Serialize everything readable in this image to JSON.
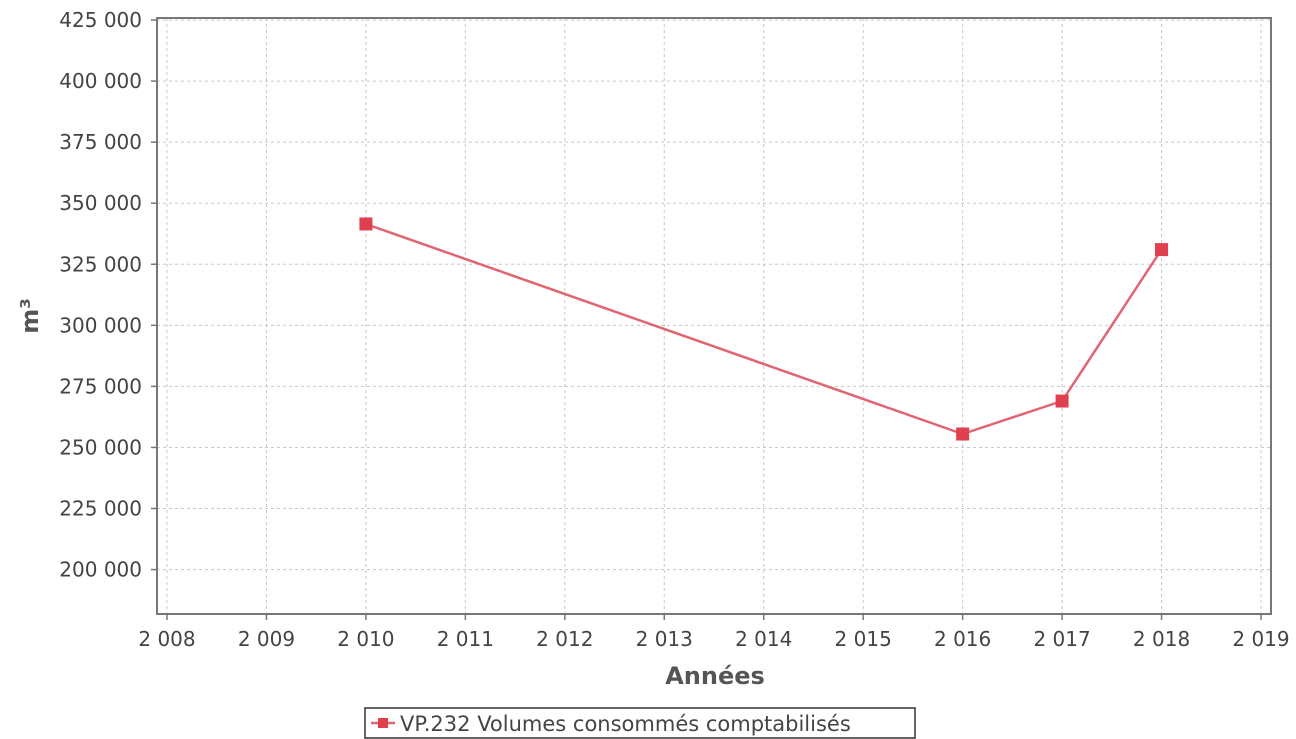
{
  "chart_data": {
    "type": "line",
    "xlabel": "Années",
    "ylabel": "m³",
    "xlim": [
      2008,
      2019
    ],
    "ylim": [
      190000,
      425000
    ],
    "x_ticks": [
      2008,
      2009,
      2010,
      2011,
      2012,
      2013,
      2014,
      2015,
      2016,
      2017,
      2018,
      2019
    ],
    "x_tick_labels": [
      "2 008",
      "2 009",
      "2 010",
      "2 011",
      "2 012",
      "2 013",
      "2 014",
      "2 015",
      "2 016",
      "2 017",
      "2 018",
      "2 019"
    ],
    "y_ticks": [
      200000,
      225000,
      250000,
      275000,
      300000,
      325000,
      350000,
      375000,
      400000,
      425000
    ],
    "y_tick_labels": [
      "200 000",
      "225 000",
      "250 000",
      "275 000",
      "300 000",
      "325 000",
      "350 000",
      "375 000",
      "400 000",
      "425 000"
    ],
    "grid": true,
    "legend_position": "bottom-center",
    "series": [
      {
        "name": "VP.232 Volumes consommés comptabilisés",
        "color": "#e06570",
        "marker_color": "#e0404e",
        "x": [
          2010,
          2016,
          2017,
          2018
        ],
        "y": [
          341500,
          255500,
          269000,
          331000
        ]
      }
    ]
  }
}
